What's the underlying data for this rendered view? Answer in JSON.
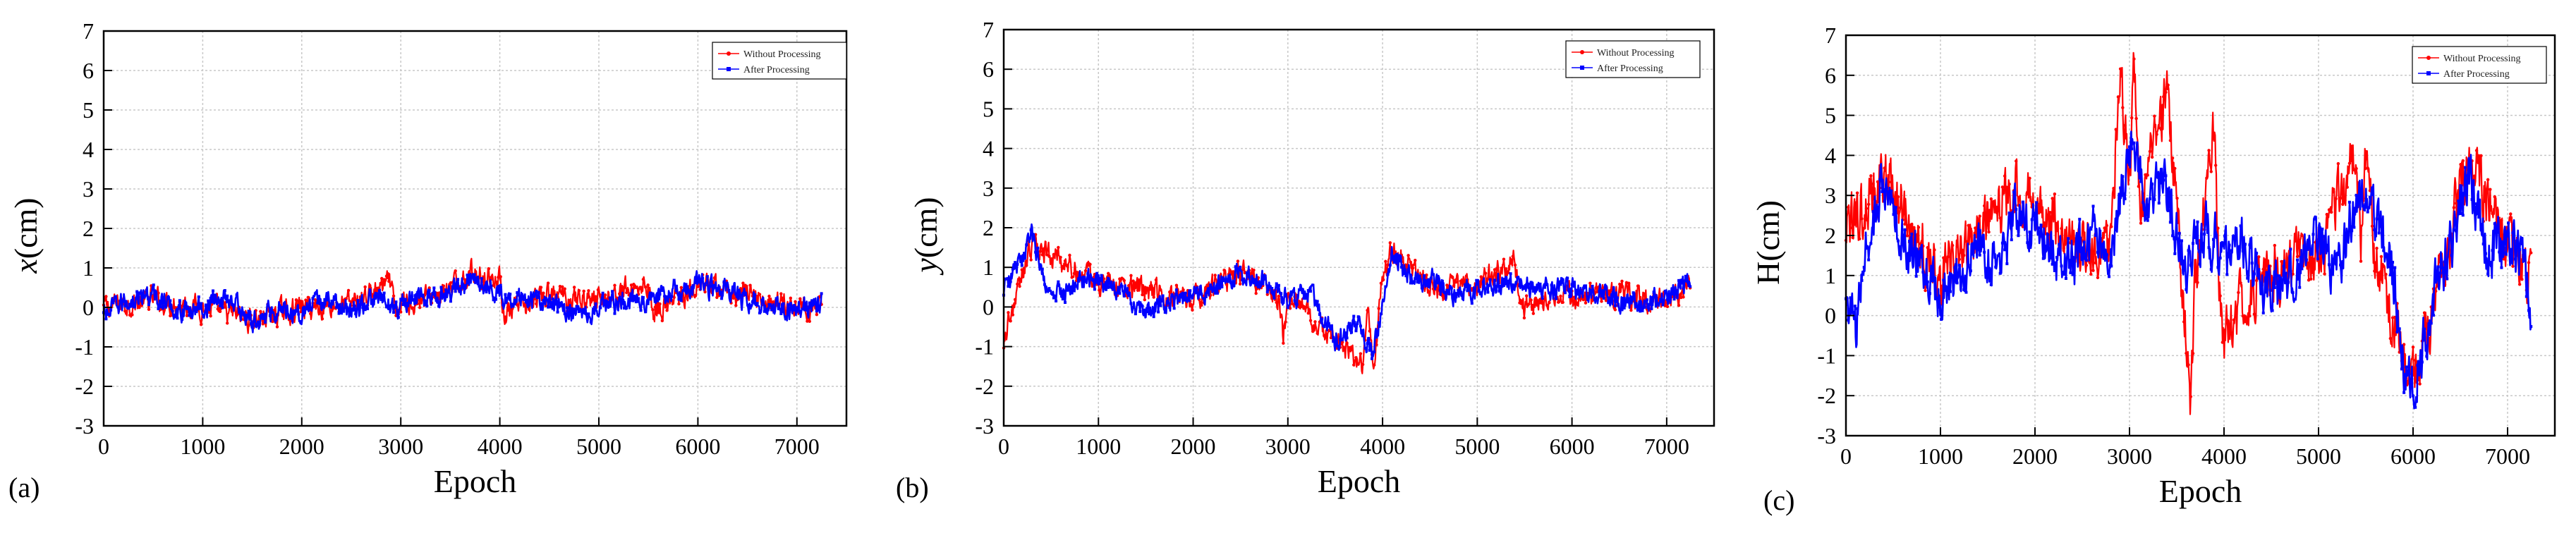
{
  "panels": [
    {
      "letter": "(a)"
    },
    {
      "letter": "(b)"
    },
    {
      "letter": "(c)"
    }
  ],
  "chart_data": [
    {
      "type": "line",
      "xlabel": "Epoch",
      "ylabel": "x(cm)",
      "ylabel_italic": "x",
      "ylabel_rest": "(cm)",
      "xlim": [
        0,
        7500
      ],
      "ylim": [
        -3,
        7
      ],
      "x_ticks": [
        0,
        1000,
        2000,
        3000,
        4000,
        5000,
        6000,
        7000
      ],
      "y_ticks": [
        -3,
        -2,
        -1,
        0,
        1,
        2,
        3,
        4,
        5,
        6,
        7
      ],
      "grid": true,
      "legend_position": "top-right",
      "x_end": 7250,
      "series": [
        {
          "name": "Without Processing",
          "color": "#ff0000",
          "marker": "circle",
          "x": [
            0,
            500,
            1000,
            1500,
            2000,
            2500,
            2900,
            2950,
            3000,
            3500,
            3700,
            4000,
            4050,
            4500,
            5000,
            5500,
            5550,
            6000,
            6500,
            7000,
            7250
          ],
          "y": [
            0.0,
            0.2,
            0.0,
            -0.3,
            0.0,
            0.1,
            0.6,
            -0.3,
            0.1,
            0.4,
            0.9,
            0.7,
            -0.2,
            0.3,
            0.2,
            0.6,
            -0.1,
            0.5,
            0.3,
            0.0,
            0.1
          ]
        },
        {
          "name": "After Processing",
          "color": "#0000ff",
          "marker": "square",
          "x": [
            0,
            250,
            500,
            750,
            1000,
            1250,
            1500,
            1750,
            2000,
            2250,
            2500,
            2750,
            3000,
            3250,
            3500,
            3750,
            4000,
            4250,
            4500,
            4750,
            5000,
            5250,
            5500,
            5750,
            6000,
            6250,
            6500,
            6750,
            7000,
            7250
          ],
          "y": [
            -0.2,
            0.2,
            0.3,
            -0.1,
            0.0,
            0.3,
            -0.4,
            0.0,
            -0.1,
            0.2,
            -0.1,
            0.2,
            0.0,
            0.3,
            0.4,
            0.8,
            0.3,
            0.3,
            0.1,
            -0.1,
            0.0,
            0.2,
            0.2,
            0.4,
            0.6,
            0.4,
            0.2,
            0.0,
            -0.1,
            0.1
          ]
        }
      ]
    },
    {
      "type": "line",
      "xlabel": "Epoch",
      "ylabel": "y(cm)",
      "ylabel_italic": "y",
      "ylabel_rest": "(cm)",
      "xlim": [
        0,
        7500
      ],
      "ylim": [
        -3,
        7
      ],
      "x_ticks": [
        0,
        1000,
        2000,
        3000,
        4000,
        5000,
        6000,
        7000
      ],
      "y_ticks": [
        -3,
        -2,
        -1,
        0,
        1,
        2,
        3,
        4,
        5,
        6,
        7
      ],
      "grid": true,
      "legend_position": "top-right",
      "x_end": 7250,
      "series": [
        {
          "name": "Without Processing",
          "color": "#ff0000",
          "marker": "circle",
          "x": [
            0,
            300,
            1000,
            2000,
            2500,
            2900,
            2950,
            3000,
            3500,
            3800,
            3850,
            3900,
            4000,
            4100,
            4500,
            5000,
            5400,
            5450,
            6000,
            7000,
            7250
          ],
          "y": [
            -0.8,
            1.6,
            0.6,
            0.2,
            0.9,
            0.2,
            -0.8,
            0.3,
            -0.9,
            -1.5,
            0.3,
            -1.7,
            0.8,
            1.4,
            0.5,
            0.5,
            1.2,
            0.0,
            0.3,
            0.2,
            0.5
          ]
        },
        {
          "name": "After Processing",
          "color": "#0000ff",
          "marker": "square",
          "x": [
            0,
            150,
            300,
            500,
            750,
            1000,
            1250,
            1500,
            1750,
            2000,
            2250,
            2500,
            2750,
            3000,
            3250,
            3500,
            3750,
            3900,
            4100,
            4250,
            4500,
            4750,
            5000,
            5250,
            5500,
            5750,
            6000,
            6250,
            6500,
            6750,
            7000,
            7250
          ],
          "y": [
            0.5,
            1.0,
            1.8,
            0.2,
            0.6,
            0.7,
            0.5,
            -0.2,
            0.1,
            0.3,
            0.5,
            0.9,
            0.6,
            0.2,
            0.3,
            -0.8,
            -0.4,
            -1.2,
            1.3,
            0.8,
            0.7,
            0.3,
            0.5,
            0.6,
            0.5,
            0.4,
            0.5,
            0.4,
            0.2,
            0.1,
            0.3,
            0.7
          ]
        }
      ]
    },
    {
      "type": "line",
      "xlabel": "Epoch",
      "ylabel": "H(cm)",
      "ylabel_italic": "",
      "ylabel_rest": "H(cm)",
      "xlim": [
        0,
        7500
      ],
      "ylim": [
        -3,
        7
      ],
      "x_ticks": [
        0,
        1000,
        2000,
        3000,
        4000,
        5000,
        6000,
        7000
      ],
      "y_ticks": [
        -3,
        -2,
        -1,
        0,
        1,
        2,
        3,
        4,
        5,
        6,
        7
      ],
      "grid": true,
      "legend_position": "top-right",
      "x_end": 7250,
      "series": [
        {
          "name": "Without Processing",
          "color": "#ff0000",
          "marker": "circle",
          "x": [
            0,
            400,
            1000,
            1800,
            2500,
            2800,
            2900,
            3000,
            3050,
            3100,
            3400,
            3600,
            3650,
            3700,
            3900,
            3950,
            4000,
            4500,
            5000,
            5400,
            5450,
            5500,
            5600,
            6000,
            6600,
            7000,
            7250
          ],
          "y": [
            2.0,
            3.5,
            1.0,
            3.2,
            1.5,
            2.0,
            6.0,
            3.0,
            6.7,
            2.5,
            5.5,
            -0.5,
            -2.1,
            1.0,
            4.9,
            0.5,
            -0.3,
            1.2,
            1.5,
            4.2,
            2.0,
            3.8,
            1.5,
            -1.8,
            4.0,
            1.8,
            1.0
          ]
        },
        {
          "name": "After Processing",
          "color": "#0000ff",
          "marker": "square",
          "x": [
            0,
            100,
            200,
            400,
            600,
            800,
            1000,
            1200,
            1400,
            1600,
            1800,
            2000,
            2200,
            2400,
            2600,
            2800,
            3000,
            3200,
            3400,
            3600,
            3800,
            4000,
            4200,
            4400,
            4600,
            4800,
            5000,
            5200,
            5400,
            5600,
            5800,
            5900,
            6000,
            6200,
            6400,
            6600,
            6800,
            7000,
            7100,
            7250
          ],
          "y": [
            0.5,
            -0.5,
            1.5,
            3.3,
            1.8,
            1.2,
            0.5,
            1.0,
            1.8,
            1.2,
            2.5,
            2.3,
            1.5,
            1.2,
            2.2,
            1.5,
            4.2,
            2.8,
            3.2,
            1.0,
            2.2,
            1.5,
            1.8,
            0.8,
            0.5,
            1.3,
            1.8,
            1.0,
            3.0,
            2.5,
            0.8,
            -1.3,
            -1.6,
            0.3,
            1.8,
            3.6,
            1.5,
            2.0,
            1.8,
            0.2
          ]
        }
      ]
    }
  ]
}
